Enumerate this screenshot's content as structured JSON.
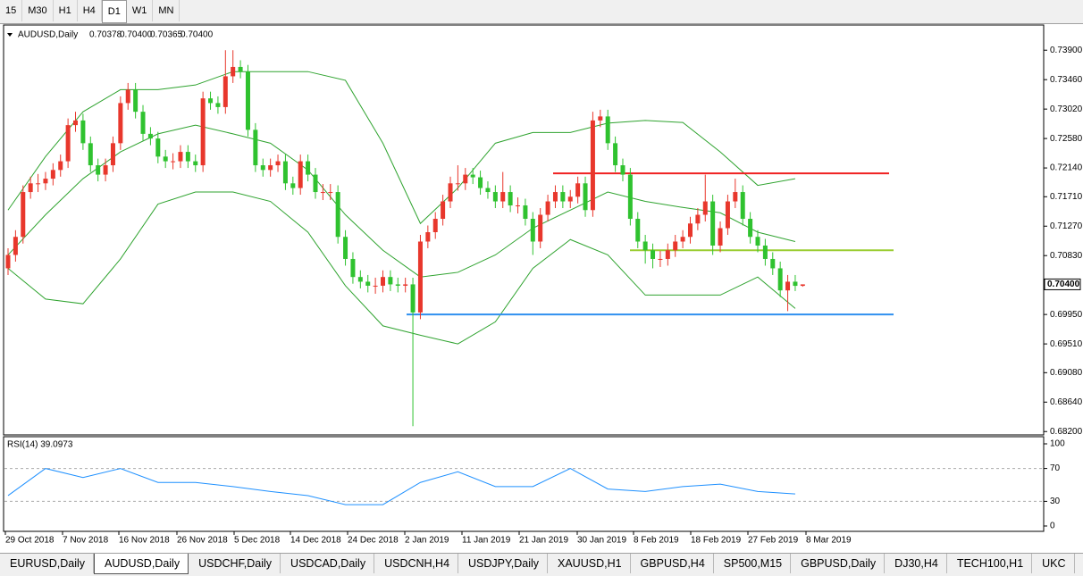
{
  "toolbar": {
    "timeframes": [
      "15",
      "M30",
      "H1",
      "H4",
      "D1",
      "W1",
      "MN"
    ],
    "active": 4
  },
  "chart_data": {
    "type": "candlestick",
    "symbol": "AUDUSD,Daily",
    "ohlc_labels": [
      "0.70378",
      "0.70400",
      "0.70365",
      "0.70400"
    ],
    "price_label": "0.70400",
    "price_label_value": 0.704,
    "up_color": "#e8372c",
    "down_color": "#2fc22f",
    "ylim": [
      0.6815,
      0.7425
    ],
    "yticks": [
      {
        "value": 0.739,
        "label": "0.73900"
      },
      {
        "value": 0.7346,
        "label": "0.73460"
      },
      {
        "value": 0.7302,
        "label": "0.73020"
      },
      {
        "value": 0.7258,
        "label": "0.72580"
      },
      {
        "value": 0.7214,
        "label": "0.72140"
      },
      {
        "value": 0.7171,
        "label": "0.71710"
      },
      {
        "value": 0.7127,
        "label": "0.71270"
      },
      {
        "value": 0.7083,
        "label": "0.70830"
      },
      {
        "value": 0.6995,
        "label": "0.69950"
      },
      {
        "value": 0.6951,
        "label": "0.69510"
      },
      {
        "value": 0.6908,
        "label": "0.69080"
      },
      {
        "value": 0.6864,
        "label": "0.68640"
      },
      {
        "value": 0.682,
        "label": "0.68200"
      }
    ],
    "candles": [
      [
        0.7064,
        0.7094,
        0.7054,
        0.7084
      ],
      [
        0.7084,
        0.7121,
        0.7074,
        0.7111
      ],
      [
        0.7111,
        0.7188,
        0.7101,
        0.7178
      ],
      [
        0.7178,
        0.7201,
        0.7168,
        0.7191
      ],
      [
        0.7191,
        0.7205,
        0.7178,
        0.7191
      ],
      [
        0.7191,
        0.7208,
        0.7181,
        0.7198
      ],
      [
        0.7198,
        0.7221,
        0.7188,
        0.7211
      ],
      [
        0.7211,
        0.7234,
        0.7201,
        0.7224
      ],
      [
        0.7224,
        0.7288,
        0.7214,
        0.7278
      ],
      [
        0.7278,
        0.7298,
        0.7268,
        0.7285
      ],
      [
        0.7285,
        0.7295,
        0.7241,
        0.7251
      ],
      [
        0.7251,
        0.7261,
        0.7208,
        0.7218
      ],
      [
        0.7218,
        0.7228,
        0.7194,
        0.7204
      ],
      [
        0.7204,
        0.7228,
        0.7194,
        0.7218
      ],
      [
        0.7218,
        0.7261,
        0.7208,
        0.7251
      ],
      [
        0.7251,
        0.7321,
        0.7241,
        0.7311
      ],
      [
        0.7311,
        0.7341,
        0.7301,
        0.7331
      ],
      [
        0.7331,
        0.7341,
        0.7288,
        0.7298
      ],
      [
        0.7298,
        0.7308,
        0.7255,
        0.7265
      ],
      [
        0.7265,
        0.7275,
        0.7248,
        0.7258
      ],
      [
        0.7258,
        0.7268,
        0.7221,
        0.7231
      ],
      [
        0.7231,
        0.7241,
        0.7214,
        0.7224
      ],
      [
        0.7224,
        0.7236,
        0.7212,
        0.7224
      ],
      [
        0.7224,
        0.7248,
        0.7214,
        0.7238
      ],
      [
        0.7238,
        0.7248,
        0.7214,
        0.7224
      ],
      [
        0.7224,
        0.7234,
        0.7208,
        0.7218
      ],
      [
        0.7218,
        0.7328,
        0.7208,
        0.7318
      ],
      [
        0.7318,
        0.7328,
        0.7301,
        0.7311
      ],
      [
        0.7311,
        0.7321,
        0.7295,
        0.7305
      ],
      [
        0.7305,
        0.739,
        0.7295,
        0.7351
      ],
      [
        0.7351,
        0.739,
        0.7341,
        0.7365
      ],
      [
        0.7365,
        0.7375,
        0.7348,
        0.7358
      ],
      [
        0.7358,
        0.7368,
        0.7261,
        0.7271
      ],
      [
        0.7271,
        0.7281,
        0.7208,
        0.7218
      ],
      [
        0.7218,
        0.7228,
        0.7201,
        0.7211
      ],
      [
        0.7211,
        0.7228,
        0.7201,
        0.7218
      ],
      [
        0.7218,
        0.7234,
        0.7208,
        0.7224
      ],
      [
        0.7224,
        0.7234,
        0.7181,
        0.7191
      ],
      [
        0.7191,
        0.7201,
        0.7174,
        0.7184
      ],
      [
        0.7184,
        0.7234,
        0.7174,
        0.7224
      ],
      [
        0.7224,
        0.7234,
        0.7194,
        0.7204
      ],
      [
        0.7204,
        0.7214,
        0.7168,
        0.7178
      ],
      [
        0.7178,
        0.719,
        0.7166,
        0.7178
      ],
      [
        0.7178,
        0.719,
        0.7166,
        0.7178
      ],
      [
        0.7178,
        0.7188,
        0.7101,
        0.7111
      ],
      [
        0.7111,
        0.7121,
        0.7068,
        0.7078
      ],
      [
        0.7078,
        0.7088,
        0.7041,
        0.7051
      ],
      [
        0.7051,
        0.7061,
        0.7034,
        0.7044
      ],
      [
        0.7044,
        0.7054,
        0.7028,
        0.7038
      ],
      [
        0.7038,
        0.705,
        0.7026,
        0.7038
      ],
      [
        0.7038,
        0.7061,
        0.7028,
        0.7051
      ],
      [
        0.7051,
        0.7061,
        0.703,
        0.704
      ],
      [
        0.704,
        0.705,
        0.7028,
        0.7038
      ],
      [
        0.7038,
        0.705,
        0.7028,
        0.704
      ],
      [
        0.704,
        0.705,
        0.6828,
        0.6998
      ],
      [
        0.6998,
        0.7114,
        0.6988,
        0.7104
      ],
      [
        0.7104,
        0.7128,
        0.7094,
        0.7118
      ],
      [
        0.7118,
        0.7148,
        0.7108,
        0.7138
      ],
      [
        0.7138,
        0.7174,
        0.7128,
        0.7164
      ],
      [
        0.7164,
        0.7201,
        0.7154,
        0.7191
      ],
      [
        0.7191,
        0.7218,
        0.718,
        0.7191
      ],
      [
        0.7191,
        0.7214,
        0.7181,
        0.7204
      ],
      [
        0.7204,
        0.7214,
        0.719,
        0.72
      ],
      [
        0.72,
        0.721,
        0.7174,
        0.7184
      ],
      [
        0.7184,
        0.7194,
        0.7168,
        0.7178
      ],
      [
        0.7178,
        0.7188,
        0.7154,
        0.7164
      ],
      [
        0.7164,
        0.7208,
        0.7154,
        0.7178
      ],
      [
        0.7178,
        0.7188,
        0.7148,
        0.7158
      ],
      [
        0.7158,
        0.717,
        0.7146,
        0.7158
      ],
      [
        0.7158,
        0.7168,
        0.7128,
        0.7138
      ],
      [
        0.7138,
        0.7148,
        0.7084,
        0.7104
      ],
      [
        0.7104,
        0.7154,
        0.7094,
        0.7144
      ],
      [
        0.7144,
        0.7174,
        0.7134,
        0.7164
      ],
      [
        0.7164,
        0.7188,
        0.7154,
        0.7178
      ],
      [
        0.7178,
        0.7188,
        0.7154,
        0.7164
      ],
      [
        0.7164,
        0.7181,
        0.7154,
        0.7171
      ],
      [
        0.7171,
        0.7201,
        0.7161,
        0.7191
      ],
      [
        0.7191,
        0.7201,
        0.7141,
        0.7151
      ],
      [
        0.7151,
        0.7298,
        0.7141,
        0.7285
      ],
      [
        0.7285,
        0.7301,
        0.7275,
        0.7291
      ],
      [
        0.7291,
        0.7301,
        0.7241,
        0.7251
      ],
      [
        0.7251,
        0.7261,
        0.7208,
        0.7218
      ],
      [
        0.7218,
        0.7228,
        0.7194,
        0.7204
      ],
      [
        0.7204,
        0.7214,
        0.7128,
        0.7138
      ],
      [
        0.7138,
        0.7148,
        0.7094,
        0.7104
      ],
      [
        0.7104,
        0.7114,
        0.7071,
        0.7091
      ],
      [
        0.7091,
        0.7101,
        0.7064,
        0.7078
      ],
      [
        0.7078,
        0.709,
        0.7066,
        0.7078
      ],
      [
        0.7078,
        0.7101,
        0.7068,
        0.7091
      ],
      [
        0.7091,
        0.7114,
        0.7081,
        0.7104
      ],
      [
        0.7104,
        0.7121,
        0.7094,
        0.7111
      ],
      [
        0.7111,
        0.7141,
        0.7101,
        0.7131
      ],
      [
        0.7131,
        0.7154,
        0.7121,
        0.7144
      ],
      [
        0.7144,
        0.7204,
        0.7134,
        0.7164
      ],
      [
        0.7164,
        0.7174,
        0.7084,
        0.7098
      ],
      [
        0.7098,
        0.7134,
        0.7088,
        0.7124
      ],
      [
        0.7124,
        0.7174,
        0.7114,
        0.7164
      ],
      [
        0.7164,
        0.7198,
        0.7154,
        0.7178
      ],
      [
        0.7178,
        0.7188,
        0.7128,
        0.7138
      ],
      [
        0.7138,
        0.7148,
        0.7101,
        0.7111
      ],
      [
        0.7111,
        0.7121,
        0.7088,
        0.7098
      ],
      [
        0.7098,
        0.7108,
        0.7068,
        0.7078
      ],
      [
        0.7078,
        0.7088,
        0.7054,
        0.7064
      ],
      [
        0.7064,
        0.7074,
        0.7021,
        0.7031
      ],
      [
        0.7031,
        0.7054,
        0.7,
        0.7044
      ],
      [
        0.7044,
        0.7054,
        0.703,
        0.70378
      ],
      [
        0.70378,
        0.704,
        0.70365,
        0.704
      ]
    ],
    "bands": {
      "color": "#2fa32f",
      "x": [
        0,
        5,
        10,
        15,
        20,
        25,
        30,
        35,
        40,
        45,
        50,
        55,
        60,
        65,
        70,
        75,
        80,
        85,
        90,
        95,
        100,
        105
      ],
      "upper": [
        0.7151,
        0.7231,
        0.7298,
        0.7331,
        0.7331,
        0.7338,
        0.7358,
        0.7358,
        0.7358,
        0.7345,
        0.7251,
        0.7131,
        0.7184,
        0.7251,
        0.7267,
        0.7267,
        0.7281,
        0.7285,
        0.7282,
        0.7238,
        0.7188,
        0.7198
      ],
      "middle": [
        0.7084,
        0.7144,
        0.7198,
        0.7238,
        0.7265,
        0.7278,
        0.7265,
        0.7251,
        0.7211,
        0.7144,
        0.7091,
        0.7051,
        0.7058,
        0.7084,
        0.7124,
        0.7151,
        0.7178,
        0.7164,
        0.7155,
        0.7147,
        0.7118,
        0.7104
      ],
      "lower": [
        0.7064,
        0.7018,
        0.7011,
        0.7078,
        0.716,
        0.7178,
        0.7178,
        0.7164,
        0.7118,
        0.7038,
        0.6978,
        0.6964,
        0.6951,
        0.6984,
        0.7064,
        0.7107,
        0.7084,
        0.7024,
        0.7024,
        0.7024,
        0.7051,
        0.7004
      ]
    },
    "levels": [
      {
        "price": 0.7206,
        "color": "#f02020"
      },
      {
        "price": 0.7091,
        "color": "#9acd32"
      },
      {
        "price": 0.6995,
        "color": "#2f8fef"
      }
    ],
    "rsi": {
      "title": "RSI(14) 39.0973",
      "color": "#1e90ff",
      "ylim": [
        0,
        100
      ],
      "yticks": [
        100,
        70,
        30,
        0
      ],
      "levels": [
        70,
        30
      ],
      "x": [
        0,
        5,
        10,
        15,
        20,
        25,
        30,
        35,
        40,
        45,
        50,
        55,
        60,
        65,
        70,
        75,
        80,
        85,
        90,
        95,
        100,
        105
      ],
      "values": [
        37,
        70,
        59,
        70,
        53,
        53,
        48,
        42,
        37,
        26,
        26,
        53,
        66,
        48,
        48,
        70,
        45,
        42,
        48,
        51,
        42,
        39
      ]
    },
    "dates": [
      "29 Oct 2018",
      "7 Nov 2018",
      "16 Nov 2018",
      "26 Nov 2018",
      "5 Dec 2018",
      "14 Dec 2018",
      "24 Dec 2018",
      "2 Jan 2019",
      "11 Jan 2019",
      "21 Jan 2019",
      "30 Jan 2019",
      "8 Feb 2019",
      "18 Feb 2019",
      "27 Feb 2019",
      "8 Mar 2019"
    ]
  },
  "tabs": {
    "items": [
      "EURUSD,Daily",
      "AUDUSD,Daily",
      "USDCHF,Daily",
      "USDCAD,Daily",
      "USDCNH,H4",
      "USDJPY,Daily",
      "XAUUSD,H1",
      "GBPUSD,H4",
      "SP500,M15",
      "GBPUSD,Daily",
      "DJ30,H4",
      "TECH100,H1",
      "UKC"
    ],
    "active": 1
  }
}
